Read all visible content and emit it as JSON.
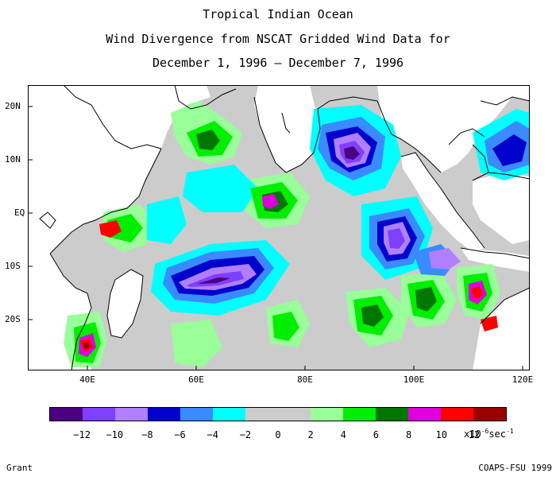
{
  "title": {
    "line1": "Tropical Indian Ocean",
    "line2": "Wind Divergence from NSCAT Gridded Wind Data for",
    "line3": "December 1, 1996 – December 7, 1996"
  },
  "map": {
    "lat_labels": [
      "20N",
      "10N",
      "EQ",
      "10S",
      "20S"
    ],
    "lon_labels": [
      "40E",
      "60E",
      "80E",
      "100E",
      "120E"
    ],
    "colors": {
      "land_fill": "#ffffff",
      "coastline": "#000000",
      "no_data": "#ffffff",
      "background_field": "#cccccc"
    }
  },
  "colorbar": {
    "colors": [
      "#4b0082",
      "#7f3fff",
      "#b07fff",
      "#0000cd",
      "#3a8bff",
      "#00ffff",
      "#cccccc",
      "#cccccc",
      "#99ff99",
      "#00ee00",
      "#007700",
      "#dd00dd",
      "#ff0000",
      "#990000"
    ],
    "labels": [
      "-12",
      "-10",
      "-8",
      "-6",
      "-4",
      "-2",
      "0",
      "2",
      "4",
      "6",
      "8",
      "10",
      "12"
    ],
    "unit": "x10",
    "unit_exp1": "-6",
    "unit_mid": "sec",
    "unit_exp2": "-1"
  },
  "footer": {
    "left": "Grant",
    "right": "COAPS-FSU 1999"
  }
}
